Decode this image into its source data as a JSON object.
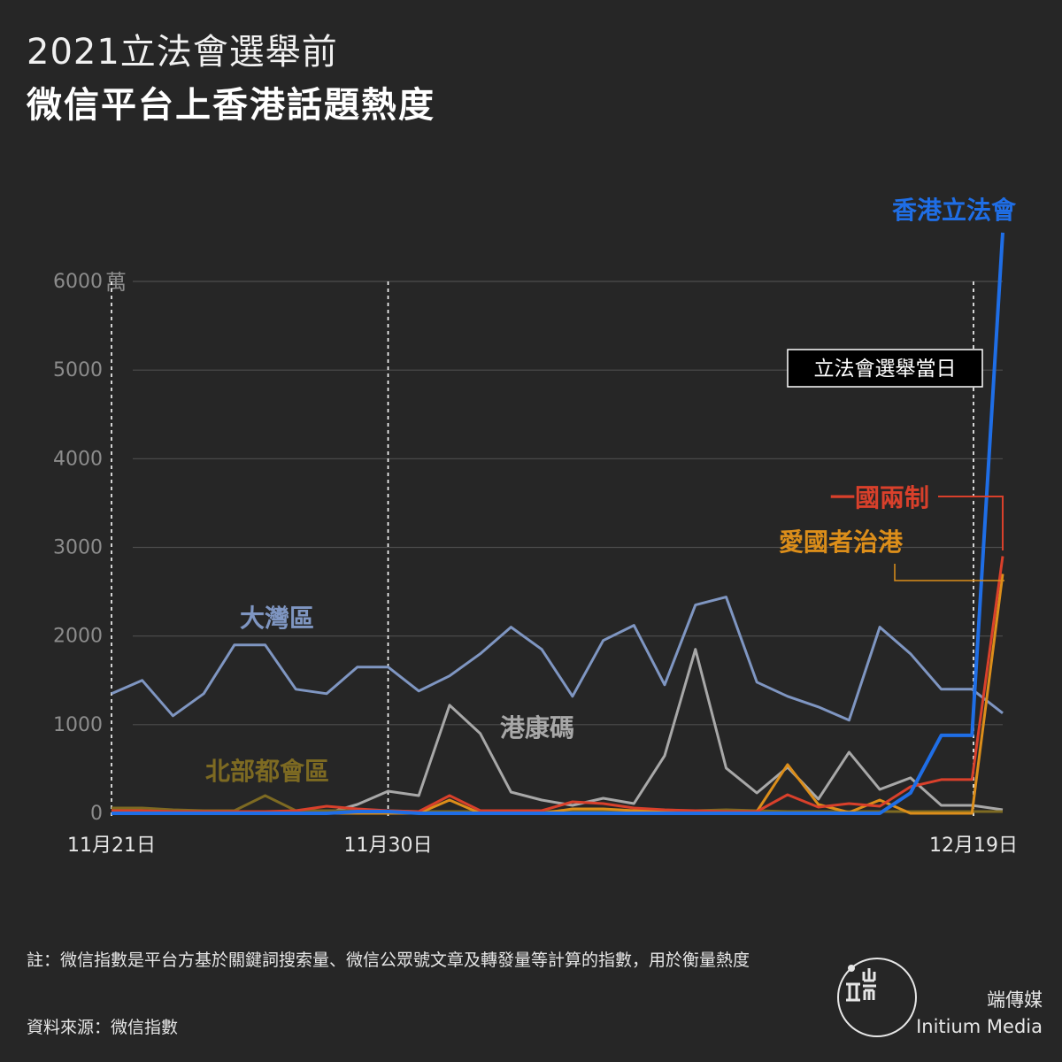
{
  "header": {
    "title_line1": "2021立法會選舉前",
    "title_line2": "微信平台上香港話題熱度"
  },
  "chart_data": {
    "type": "line",
    "title": "2021立法會選舉前 微信平台上香港話題熱度",
    "y_unit": "萬",
    "ylim": [
      0,
      6000
    ],
    "yticks": [
      0,
      1000,
      2000,
      3000,
      4000,
      5000,
      6000
    ],
    "ytick_labels": [
      "0",
      "1000",
      "2000",
      "3000",
      "4000",
      "5000",
      "6000"
    ],
    "x_start": "11月21日",
    "x_end": "12月19日",
    "x_labels": [
      "11月21日",
      "11月30日",
      "12月19日"
    ],
    "grid": true,
    "series": [
      {
        "name": "大灣區",
        "color": "#7f96c2",
        "values": [
          1350,
          1500,
          1100,
          1350,
          1900,
          1900,
          1400,
          1350,
          1650,
          1650,
          1380,
          1550,
          1800,
          2100,
          1850,
          1320,
          1950,
          2120,
          1450,
          2350,
          2440,
          1480,
          1320,
          1200,
          1050,
          2100,
          1800,
          1400,
          1400,
          1130
        ]
      },
      {
        "name": "港康碼",
        "color": "#a8a8a8",
        "values": [
          0,
          0,
          0,
          0,
          0,
          0,
          0,
          0,
          100,
          250,
          200,
          1220,
          900,
          240,
          150,
          90,
          170,
          110,
          650,
          1850,
          510,
          230,
          520,
          160,
          690,
          270,
          400,
          90,
          90,
          40
        ]
      },
      {
        "name": "北部都會區",
        "color": "#7d6a22",
        "values": [
          60,
          60,
          40,
          30,
          30,
          200,
          30,
          30,
          30,
          30,
          20,
          20,
          20,
          20,
          20,
          30,
          30,
          20,
          30,
          30,
          40,
          30,
          20,
          20,
          20,
          20,
          20,
          20,
          20,
          20
        ]
      },
      {
        "name": "愛國者治港",
        "color": "#dc8e1a",
        "values": [
          0,
          0,
          0,
          0,
          0,
          0,
          0,
          0,
          0,
          0,
          0,
          150,
          0,
          0,
          0,
          50,
          50,
          30,
          30,
          20,
          20,
          20,
          550,
          100,
          10,
          150,
          0,
          0,
          0,
          2700
        ]
      },
      {
        "name": "一國兩制",
        "color": "#d9402b",
        "values": [
          30,
          30,
          20,
          20,
          20,
          20,
          30,
          80,
          50,
          30,
          20,
          200,
          30,
          30,
          30,
          130,
          110,
          60,
          40,
          30,
          20,
          20,
          210,
          70,
          110,
          80,
          300,
          380,
          380,
          2900
        ]
      },
      {
        "name": "香港立法會",
        "color": "#1f6ee6",
        "values": [
          0,
          0,
          0,
          0,
          0,
          0,
          0,
          0,
          20,
          20,
          0,
          0,
          0,
          0,
          0,
          0,
          0,
          0,
          0,
          0,
          0,
          0,
          0,
          0,
          0,
          0,
          230,
          880,
          880,
          6550
        ]
      }
    ],
    "markers": [
      {
        "at": "11月21日"
      },
      {
        "at": "11月30日"
      },
      {
        "at": "12月19日",
        "label": "立法會選舉當日"
      }
    ]
  },
  "footer": {
    "note": "註：微信指數是平台方基於關鍵詞搜索量、微信公眾號文章及轉發量等計算的指數，用於衡量熱度",
    "source": "資料來源：微信指數",
    "brand_zh": "端傳媒",
    "brand_en": "Initium Media"
  }
}
